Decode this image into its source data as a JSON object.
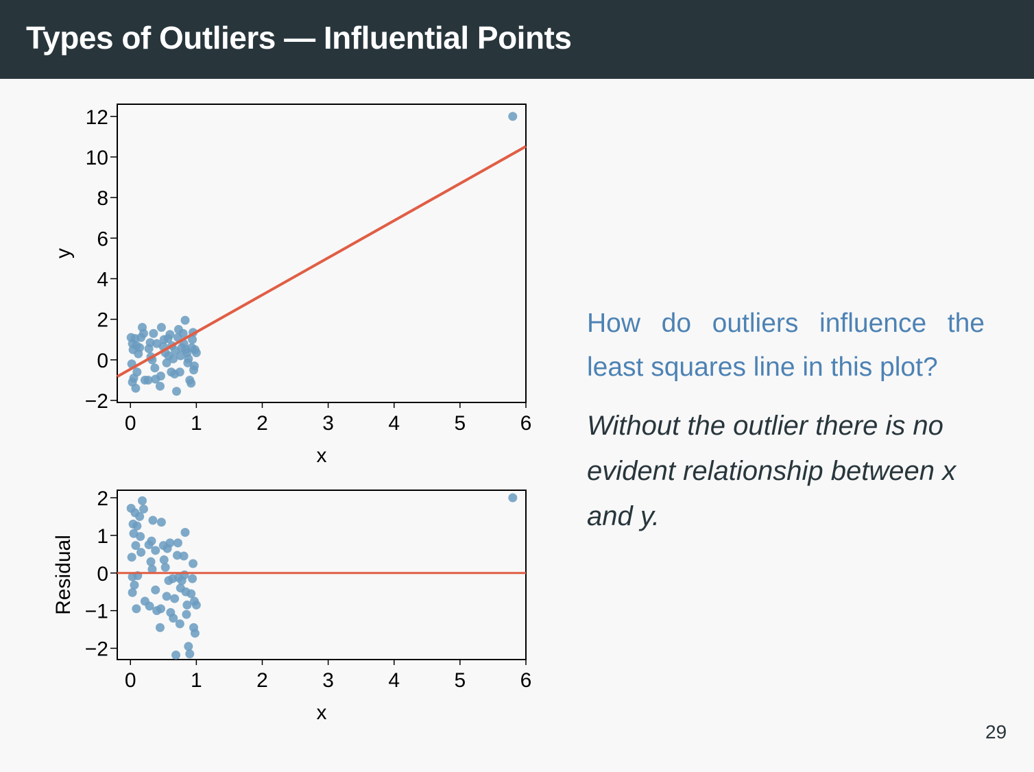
{
  "slide": {
    "title": "Types of Outliers — Influential Points",
    "question": "How do outliers influence the least squares line in this plot?",
    "answer": "Without the outlier there is no evident relationship between x and y.",
    "page_number": "29"
  },
  "colors": {
    "points": "#6a9bc0",
    "line": "#e05e45",
    "header_bg": "#28363c",
    "question_text": "#4d82b4"
  },
  "chart_data": [
    {
      "type": "scatter",
      "xlabel": "x",
      "ylabel": "y",
      "xlim": [
        -0.2,
        6.0
      ],
      "ylim": [
        -2.1,
        12.6
      ],
      "xticks": [
        0,
        1,
        2,
        3,
        4,
        5,
        6
      ],
      "yticks": [
        -2,
        0,
        2,
        4,
        6,
        8,
        10,
        12
      ],
      "ytick_labels": [
        "−2",
        "0",
        "2",
        "4",
        "6",
        "8",
        "10",
        "12"
      ],
      "regression_line": {
        "intercept": -0.46,
        "slope": 1.83
      },
      "points": [
        [
          0.01,
          1.1
        ],
        [
          0.03,
          0.8
        ],
        [
          0.04,
          0.5
        ],
        [
          0.02,
          -0.2
        ],
        [
          0.03,
          -1.1
        ],
        [
          0.05,
          -0.9
        ],
        [
          0.07,
          1.05
        ],
        [
          0.09,
          0.7
        ],
        [
          0.08,
          -1.4
        ],
        [
          0.1,
          -0.6
        ],
        [
          0.12,
          0.3
        ],
        [
          0.14,
          0.6
        ],
        [
          0.16,
          1.1
        ],
        [
          0.18,
          1.6
        ],
        [
          0.2,
          1.3
        ],
        [
          0.22,
          -1.0
        ],
        [
          0.27,
          -1.0
        ],
        [
          0.28,
          0.55
        ],
        [
          0.3,
          0.85
        ],
        [
          0.31,
          0.15
        ],
        [
          0.33,
          0.0
        ],
        [
          0.35,
          1.3
        ],
        [
          0.37,
          -0.4
        ],
        [
          0.38,
          -0.95
        ],
        [
          0.4,
          0.8
        ],
        [
          0.45,
          -1.3
        ],
        [
          0.46,
          -0.8
        ],
        [
          0.47,
          1.6
        ],
        [
          0.5,
          0.65
        ],
        [
          0.51,
          1.0
        ],
        [
          0.53,
          0.35
        ],
        [
          0.55,
          -0.15
        ],
        [
          0.57,
          1.05
        ],
        [
          0.58,
          0.2
        ],
        [
          0.6,
          1.25
        ],
        [
          0.62,
          -0.6
        ],
        [
          0.63,
          0.7
        ],
        [
          0.65,
          0.05
        ],
        [
          0.67,
          -0.7
        ],
        [
          0.68,
          0.45
        ],
        [
          0.7,
          -1.55
        ],
        [
          0.72,
          1.1
        ],
        [
          0.73,
          1.5
        ],
        [
          0.75,
          -0.6
        ],
        [
          0.76,
          0.2
        ],
        [
          0.78,
          0.6
        ],
        [
          0.8,
          1.3
        ],
        [
          0.81,
          0.8
        ],
        [
          0.83,
          1.95
        ],
        [
          0.84,
          0.5
        ],
        [
          0.86,
          0.35
        ],
        [
          0.87,
          -0.15
        ],
        [
          0.88,
          0.05
        ],
        [
          0.9,
          -1.0
        ],
        [
          0.92,
          -1.15
        ],
        [
          0.93,
          0.6
        ],
        [
          0.94,
          1.0
        ],
        [
          0.95,
          1.35
        ],
        [
          0.96,
          -0.5
        ],
        [
          0.97,
          -0.3
        ],
        [
          0.98,
          0.5
        ],
        [
          1.0,
          0.35
        ],
        [
          5.8,
          12.0
        ]
      ]
    },
    {
      "type": "scatter",
      "xlabel": "x",
      "ylabel": "Residual",
      "xlim": [
        -0.2,
        6.0
      ],
      "ylim": [
        -2.3,
        2.2
      ],
      "xticks": [
        0,
        1,
        2,
        3,
        4,
        5,
        6
      ],
      "yticks": [
        -2,
        -1,
        0,
        1,
        2
      ],
      "ytick_labels": [
        "−2",
        "−1",
        "0",
        "1",
        "2"
      ],
      "zero_line": 0,
      "points": [
        [
          0.01,
          1.72
        ],
        [
          0.02,
          0.42
        ],
        [
          0.03,
          -0.1
        ],
        [
          0.03,
          -0.52
        ],
        [
          0.04,
          1.3
        ],
        [
          0.05,
          1.05
        ],
        [
          0.06,
          -0.32
        ],
        [
          0.07,
          1.6
        ],
        [
          0.08,
          0.73
        ],
        [
          0.09,
          -0.95
        ],
        [
          0.1,
          1.25
        ],
        [
          0.11,
          -0.07
        ],
        [
          0.14,
          1.5
        ],
        [
          0.15,
          0.97
        ],
        [
          0.16,
          0.55
        ],
        [
          0.18,
          1.92
        ],
        [
          0.2,
          1.7
        ],
        [
          0.22,
          -0.75
        ],
        [
          0.28,
          0.75
        ],
        [
          0.29,
          -0.88
        ],
        [
          0.31,
          0.3
        ],
        [
          0.32,
          0.85
        ],
        [
          0.33,
          0.1
        ],
        [
          0.34,
          1.4
        ],
        [
          0.38,
          0.6
        ],
        [
          0.38,
          -0.45
        ],
        [
          0.4,
          -1.0
        ],
        [
          0.45,
          -1.45
        ],
        [
          0.46,
          -0.95
        ],
        [
          0.47,
          1.35
        ],
        [
          0.5,
          0.73
        ],
        [
          0.51,
          0.35
        ],
        [
          0.53,
          0.15
        ],
        [
          0.55,
          -0.62
        ],
        [
          0.56,
          0.65
        ],
        [
          0.58,
          -0.2
        ],
        [
          0.6,
          0.8
        ],
        [
          0.61,
          -1.05
        ],
        [
          0.64,
          -0.15
        ],
        [
          0.65,
          -1.2
        ],
        [
          0.67,
          -0.68
        ],
        [
          0.69,
          -2.18
        ],
        [
          0.71,
          0.47
        ],
        [
          0.72,
          0.8
        ],
        [
          0.73,
          -0.12
        ],
        [
          0.75,
          -1.35
        ],
        [
          0.76,
          -0.4
        ],
        [
          0.78,
          -0.2
        ],
        [
          0.81,
          0.45
        ],
        [
          0.82,
          -0.05
        ],
        [
          0.83,
          1.08
        ],
        [
          0.84,
          -0.5
        ],
        [
          0.85,
          -1.1
        ],
        [
          0.86,
          -0.85
        ],
        [
          0.88,
          -1.95
        ],
        [
          0.9,
          -2.15
        ],
        [
          0.92,
          -0.55
        ],
        [
          0.94,
          -0.15
        ],
        [
          0.95,
          0.25
        ],
        [
          0.96,
          -1.45
        ],
        [
          0.97,
          -0.75
        ],
        [
          0.98,
          -1.6
        ],
        [
          1.0,
          -0.85
        ],
        [
          5.8,
          2.0
        ]
      ]
    }
  ]
}
